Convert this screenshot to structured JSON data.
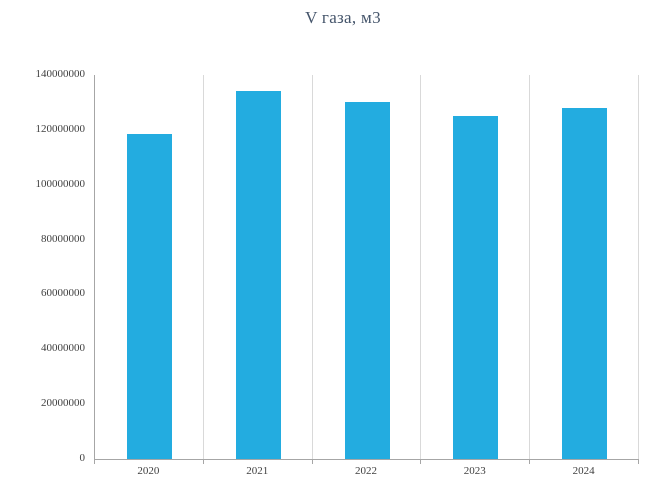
{
  "chart_data": {
    "type": "bar",
    "title": "V газа, м3",
    "categories": [
      "2020",
      "2021",
      "2022",
      "2023",
      "2024"
    ],
    "values": [
      118500000,
      134000000,
      130000000,
      125000000,
      128000000
    ],
    "xlabel": "",
    "ylabel": "",
    "ylim": [
      0,
      140000000
    ],
    "yticks": [
      0,
      20000000,
      40000000,
      60000000,
      80000000,
      100000000,
      120000000,
      140000000
    ],
    "grid": "vertical-category-boundaries-only",
    "legend": "none",
    "colors": {
      "bar": "#23ACE0",
      "gridline": "#D9D9D9",
      "axis": "#A6A6A6",
      "title": "#44546A",
      "tick_label": "#404040",
      "background": "#FFFFFF"
    }
  }
}
